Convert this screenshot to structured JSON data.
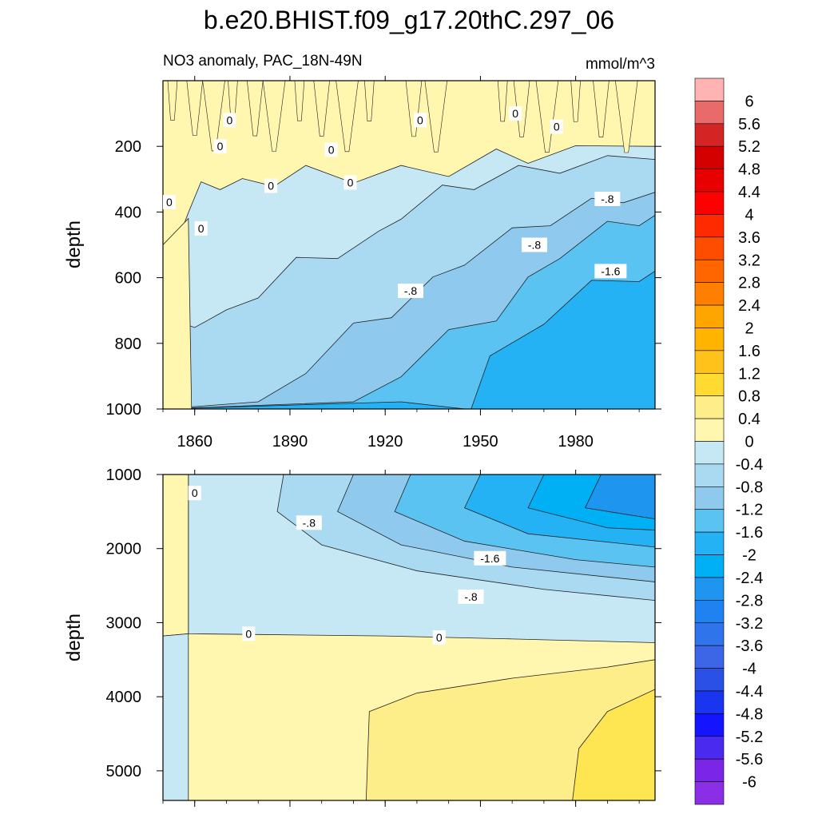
{
  "title": "b.e20.BHIST.f09_g17.20thC.297_06",
  "colors": {
    "background": "#ffffff",
    "axis": "#000000",
    "contour_line": "#222222",
    "label_box": "#ffffff"
  },
  "chart_data": [
    {
      "type": "contour",
      "panel": "upper",
      "title": "NO3 anomaly, PAC_18N-49N",
      "units": "mmol/m^3",
      "xlabel": "",
      "ylabel": "depth",
      "xlim": [
        1850,
        2005
      ],
      "ylim": [
        0,
        1000
      ],
      "y_inverted": true,
      "xticks": [
        1860,
        1890,
        1920,
        1950,
        1980
      ],
      "xtick_labels": [
        "1860",
        "1890",
        "1920",
        "1950",
        "1980"
      ],
      "yticks": [
        200,
        400,
        600,
        800,
        1000
      ],
      "ytick_labels": [
        "200",
        "400",
        "600",
        "800",
        "1000"
      ],
      "bands": [
        {
          "level": "-2.0",
          "color": "#24b2f5",
          "boundary": [
            [
              1850,
              1000
            ],
            [
              1925,
              1000
            ],
            [
              1947,
              980
            ],
            [
              1953,
              860
            ],
            [
              1970,
              720
            ],
            [
              1985,
              630
            ],
            [
              2000,
              590
            ],
            [
              2005,
              580
            ]
          ]
        },
        {
          "level": "-1.6",
          "color": "#5bc3f2",
          "boundary": [
            [
              1850,
              1000
            ],
            [
              1910,
              1000
            ],
            [
              1925,
              880
            ],
            [
              1940,
              780
            ],
            [
              1955,
              710
            ],
            [
              1965,
              620
            ],
            [
              1975,
              520
            ],
            [
              1990,
              450
            ],
            [
              2000,
              420
            ],
            [
              2005,
              410
            ]
          ]
        },
        {
          "level": "-1.2",
          "color": "#8fcaee",
          "boundary": [
            [
              1850,
              1000
            ],
            [
              1880,
              1000
            ],
            [
              1895,
              870
            ],
            [
              1910,
              760
            ],
            [
              1922,
              700
            ],
            [
              1935,
              620
            ],
            [
              1945,
              540
            ],
            [
              1960,
              470
            ],
            [
              1972,
              420
            ],
            [
              1985,
              380
            ],
            [
              1995,
              350
            ],
            [
              2005,
              340
            ]
          ]
        },
        {
          "level": "-0.8",
          "color": "#a9daf1",
          "boundary": [
            [
              1850,
              1000
            ],
            [
              1850,
              740
            ],
            [
              1860,
              730
            ],
            [
              1870,
              720
            ],
            [
              1880,
              640
            ],
            [
              1892,
              560
            ],
            [
              1905,
              520
            ],
            [
              1918,
              480
            ],
            [
              1925,
              400
            ],
            [
              1938,
              340
            ],
            [
              1948,
              310
            ],
            [
              1962,
              280
            ],
            [
              1975,
              260
            ],
            [
              1990,
              250
            ],
            [
              2005,
              240
            ]
          ]
        },
        {
          "level": "-0.4",
          "color": "#c6e7f4",
          "boundary": [
            [
              1850,
              540
            ],
            [
              1855,
              500
            ],
            [
              1858,
              380
            ],
            [
              1862,
              330
            ],
            [
              1868,
              310
            ],
            [
              1875,
              320
            ],
            [
              1885,
              300
            ],
            [
              1895,
              280
            ],
            [
              1910,
              290
            ],
            [
              1925,
              280
            ],
            [
              1940,
              270
            ],
            [
              1955,
              230
            ],
            [
              1965,
              230
            ],
            [
              1980,
              220
            ],
            [
              2005,
              200
            ]
          ]
        }
      ],
      "contour_labels": [
        {
          "x": 1871,
          "y": 120,
          "text": "0"
        },
        {
          "x": 1868,
          "y": 200,
          "text": "0"
        },
        {
          "x": 1884,
          "y": 320,
          "text": "0"
        },
        {
          "x": 1852,
          "y": 370,
          "text": "0"
        },
        {
          "x": 1862,
          "y": 450,
          "text": "0"
        },
        {
          "x": 1903,
          "y": 210,
          "text": "0"
        },
        {
          "x": 1909,
          "y": 310,
          "text": "0"
        },
        {
          "x": 1931,
          "y": 120,
          "text": "0"
        },
        {
          "x": 1961,
          "y": 100,
          "text": "0"
        },
        {
          "x": 1974,
          "y": 140,
          "text": "0"
        },
        {
          "x": 1928,
          "y": 640,
          "text": "-.8"
        },
        {
          "x": 1967,
          "y": 500,
          "text": "-.8"
        },
        {
          "x": 1990,
          "y": 360,
          "text": "-.8"
        },
        {
          "x": 1991,
          "y": 580,
          "text": "-1.6"
        }
      ]
    },
    {
      "type": "contour",
      "panel": "lower",
      "title": "",
      "xlabel": "",
      "ylabel": "depth",
      "xlim": [
        1850,
        2005
      ],
      "ylim": [
        1000,
        5400
      ],
      "y_inverted": true,
      "xticks": [
        1860,
        1890,
        1920,
        1950,
        1980
      ],
      "xtick_labels": [
        "",
        "",
        "",
        "",
        ""
      ],
      "yticks": [
        1000,
        2000,
        3000,
        4000,
        5000
      ],
      "ytick_labels": [
        "1000",
        "2000",
        "3000",
        "4000",
        "5000"
      ],
      "bands": [
        {
          "level": "0.4",
          "color": "#fdee8a",
          "boundary": [
            [
              1914,
              5400
            ],
            [
              1915,
              4200
            ],
            [
              1930,
              3950
            ],
            [
              1960,
              3750
            ],
            [
              1990,
              3600
            ],
            [
              2005,
              3500
            ]
          ]
        },
        {
          "level": "0.8",
          "color": "#fde652",
          "boundary": [
            [
              1979,
              5400
            ],
            [
              1981,
              4700
            ],
            [
              1990,
              4200
            ],
            [
              2005,
              3900
            ]
          ]
        }
      ],
      "cold_regions": [
        {
          "level": "-0.4",
          "color": "#c6e7f4"
        },
        {
          "level": "-0.8",
          "color": "#a9daf1"
        },
        {
          "level": "-1.2",
          "color": "#8fcaee"
        },
        {
          "level": "-1.6",
          "color": "#5bc3f2"
        },
        {
          "level": "-2.0",
          "color": "#24b2f5"
        },
        {
          "level": "-2.4",
          "color": "#00b0f5"
        },
        {
          "level": "-2.8",
          "color": "#1e96f0"
        }
      ],
      "contour_labels": [
        {
          "x": 1860,
          "y": 1250,
          "text": "0"
        },
        {
          "x": 1896,
          "y": 1650,
          "text": "-.8"
        },
        {
          "x": 1953,
          "y": 2130,
          "text": "-1.6"
        },
        {
          "x": 1947,
          "y": 2650,
          "text": "-.8"
        },
        {
          "x": 1877,
          "y": 3150,
          "text": "0"
        },
        {
          "x": 1937,
          "y": 3200,
          "text": "0"
        }
      ]
    }
  ],
  "colorbar": {
    "levels": [
      "6",
      "5.6",
      "5.2",
      "4.8",
      "4.4",
      "4",
      "3.6",
      "3.2",
      "2.8",
      "2.4",
      "2",
      "1.6",
      "1.2",
      "0.8",
      "0.4",
      "0",
      "-0.4",
      "-0.8",
      "-1.2",
      "-1.6",
      "-2",
      "-2.4",
      "-2.8",
      "-3.2",
      "-3.6",
      "-4",
      "-4.4",
      "-4.8",
      "-5.2",
      "-5.6",
      "-6"
    ],
    "colors": [
      "#ffb3b3",
      "#e86a6a",
      "#d42424",
      "#d40000",
      "#e80000",
      "#ff0000",
      "#ff2a00",
      "#ff4d00",
      "#ff6600",
      "#ff8000",
      "#ffa500",
      "#ffb400",
      "#ffc21a",
      "#ffda30",
      "#fdee8a",
      "#fff6b0",
      "#c6e7f4",
      "#a9daf1",
      "#8fcaee",
      "#5bc3f2",
      "#24b2f5",
      "#00b0f5",
      "#1e96f0",
      "#1e82f0",
      "#2f74ea",
      "#3d66e6",
      "#2a50e6",
      "#1a35f0",
      "#1414ff",
      "#4b2af0",
      "#7a25e8",
      "#8a2fe6"
    ]
  }
}
